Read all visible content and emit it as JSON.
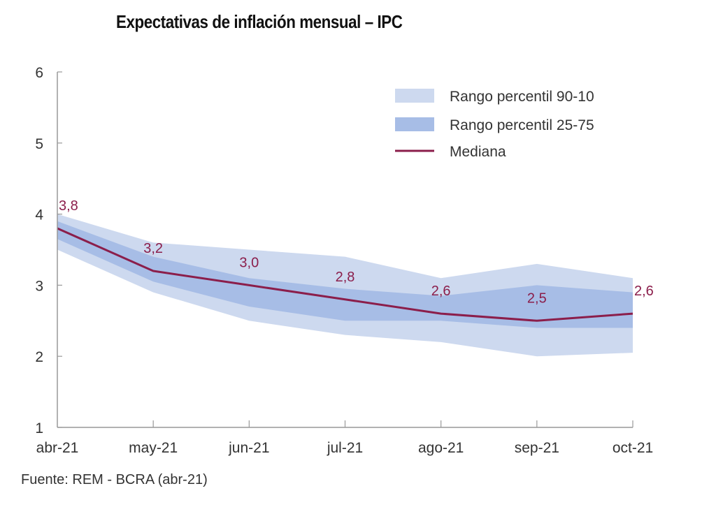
{
  "chart_data": {
    "type": "line",
    "title": "Expectativas de inflación mensual – IPC",
    "source": "Fuente: REM - BCRA (abr-21)",
    "xlabel": "",
    "ylabel": "",
    "categories": [
      "abr-21",
      "may-21",
      "jun-21",
      "jul-21",
      "ago-21",
      "sep-21",
      "oct-21"
    ],
    "ylim": [
      1,
      6
    ],
    "yticks": [
      1,
      2,
      3,
      4,
      5,
      6
    ],
    "grid": false,
    "legend_position": "top-right",
    "colors": {
      "band_90_10": "#cdd9ef",
      "band_25_75": "#a7bde6",
      "median": "#8b1e4b",
      "axis": "#999999"
    },
    "series": [
      {
        "name": "Rango percentil 90-10",
        "kind": "band",
        "lower": [
          3.5,
          2.9,
          2.5,
          2.3,
          2.2,
          2.0,
          2.05
        ],
        "upper": [
          4.0,
          3.6,
          3.5,
          3.4,
          3.1,
          3.3,
          3.1
        ]
      },
      {
        "name": "Rango percentil 25-75",
        "kind": "band",
        "lower": [
          3.65,
          3.05,
          2.7,
          2.5,
          2.5,
          2.4,
          2.4
        ],
        "upper": [
          3.9,
          3.4,
          3.1,
          2.95,
          2.85,
          3.0,
          2.9
        ]
      },
      {
        "name": "Mediana",
        "kind": "line",
        "values": [
          3.8,
          3.2,
          3.0,
          2.8,
          2.6,
          2.5,
          2.6
        ],
        "labels": [
          "3,8",
          "3,2",
          "3,0",
          "2,8",
          "2,6",
          "2,5",
          "2,6"
        ]
      }
    ]
  }
}
